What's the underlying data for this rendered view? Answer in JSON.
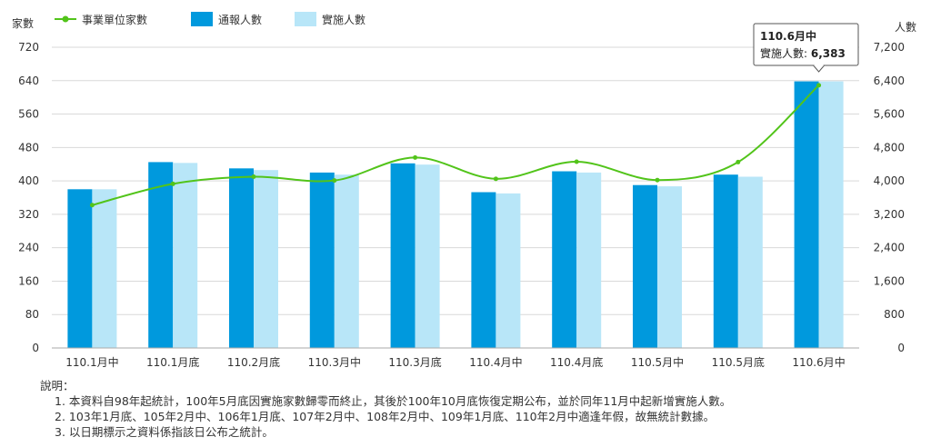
{
  "chart_data": {
    "type": "bar",
    "left_axis_title": "家數",
    "right_axis_title": "人數",
    "categories": [
      "110.1月中",
      "110.1月底",
      "110.2月底",
      "110.3月中",
      "110.3月底",
      "110.4月中",
      "110.4月底",
      "110.5月中",
      "110.5月底",
      "110.6月中"
    ],
    "series": [
      {
        "name": "事業單位家數",
        "kind": "line",
        "axis": "left",
        "color": "#52c41a",
        "values": [
          342,
          393,
          410,
          401,
          456,
          405,
          446,
          402,
          445,
          629
        ]
      },
      {
        "name": "通報人數",
        "kind": "bar",
        "axis": "right",
        "color": "#0099dd",
        "values": [
          3800,
          4450,
          4300,
          4200,
          4420,
          3730,
          4230,
          3900,
          4150,
          6383
        ]
      },
      {
        "name": "實施人數",
        "kind": "bar",
        "axis": "right",
        "color": "#b8e6f8",
        "values": [
          3800,
          4430,
          4260,
          4150,
          4390,
          3700,
          4200,
          3870,
          4100,
          6383
        ]
      }
    ],
    "left_ticks": [
      "0",
      "80",
      "160",
      "240",
      "320",
      "400",
      "480",
      "560",
      "640",
      "720"
    ],
    "right_ticks": [
      "0",
      "800",
      "1,600",
      "2,400",
      "3,200",
      "4,000",
      "4,800",
      "5,600",
      "6,400",
      "7,200"
    ],
    "left_range": [
      0,
      720
    ],
    "right_range": [
      0,
      7200
    ],
    "grid": true,
    "legend_position": "top-left",
    "tooltip": {
      "title": "110.6月中",
      "label": "實施人數: ",
      "value": "6,383",
      "category_index": 9
    }
  },
  "notes": {
    "heading": "說明：",
    "items": [
      "1. 本資料自98年起統計，100年5月底因實施家數歸零而終止，其後於100年10月底恢復定期公布，並於同年11月中起新增實施人數。",
      "2. 103年1月底、105年2月中、106年1月底、107年2月中、108年2月中、109年1月底、110年2月中適逢年假，故無統計數據。",
      "3. 以日期標示之資料係指該日公布之統計。"
    ]
  }
}
